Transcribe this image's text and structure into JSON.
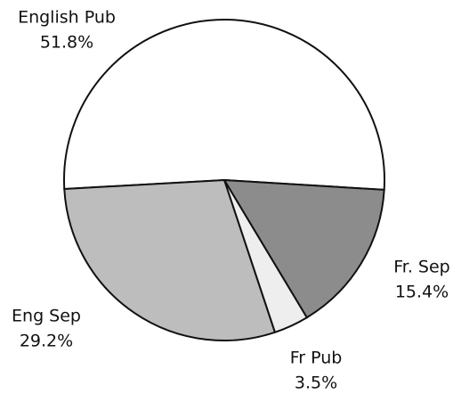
{
  "chart_data": {
    "type": "pie",
    "categories": [
      "English Pub",
      "Fr. Sep",
      "Fr Pub",
      "Eng Sep"
    ],
    "values": [
      51.8,
      15.4,
      3.5,
      29.2
    ],
    "value_labels": [
      "51.8%",
      "15.4%",
      "3.5%",
      "29.2%"
    ],
    "colors": [
      "#ffffff",
      "#8c8c8c",
      "#eeeeee",
      "#bdbdbd"
    ]
  }
}
